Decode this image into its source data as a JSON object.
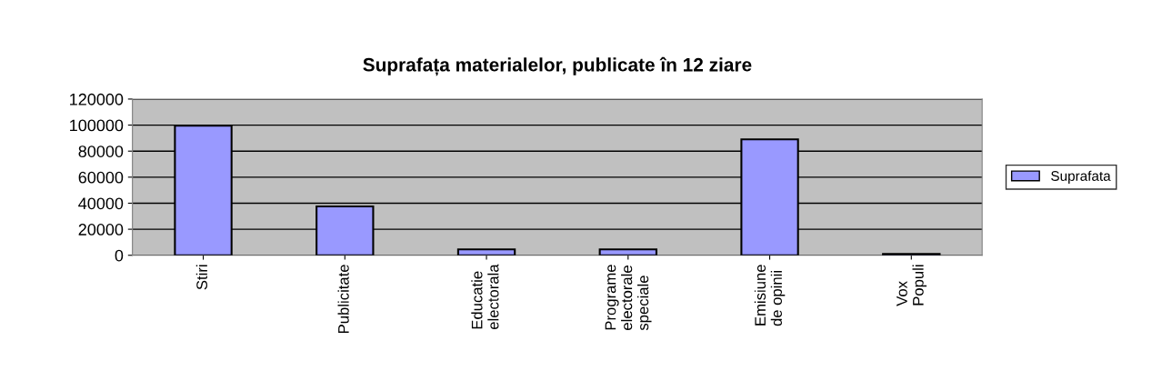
{
  "chart_data": {
    "type": "bar",
    "title": "Suprafața materialelor, publicate în 12 ziare",
    "categories": [
      "Stiri",
      "Publicitate",
      "Educatie\nelectorala",
      "Programe\nelectorale\nspeciale",
      "Emisiune\nde opinii",
      "Vox\nPopuli"
    ],
    "series": [
      {
        "name": "Suprafata",
        "color": "#9999ff",
        "values": [
          99500,
          37500,
          4500,
          4500,
          89000,
          1000
        ]
      }
    ],
    "ylim": [
      0,
      120000
    ],
    "yticks": [
      0,
      20000,
      40000,
      60000,
      80000,
      100000,
      120000
    ],
    "grid": "y",
    "legend": "right"
  }
}
